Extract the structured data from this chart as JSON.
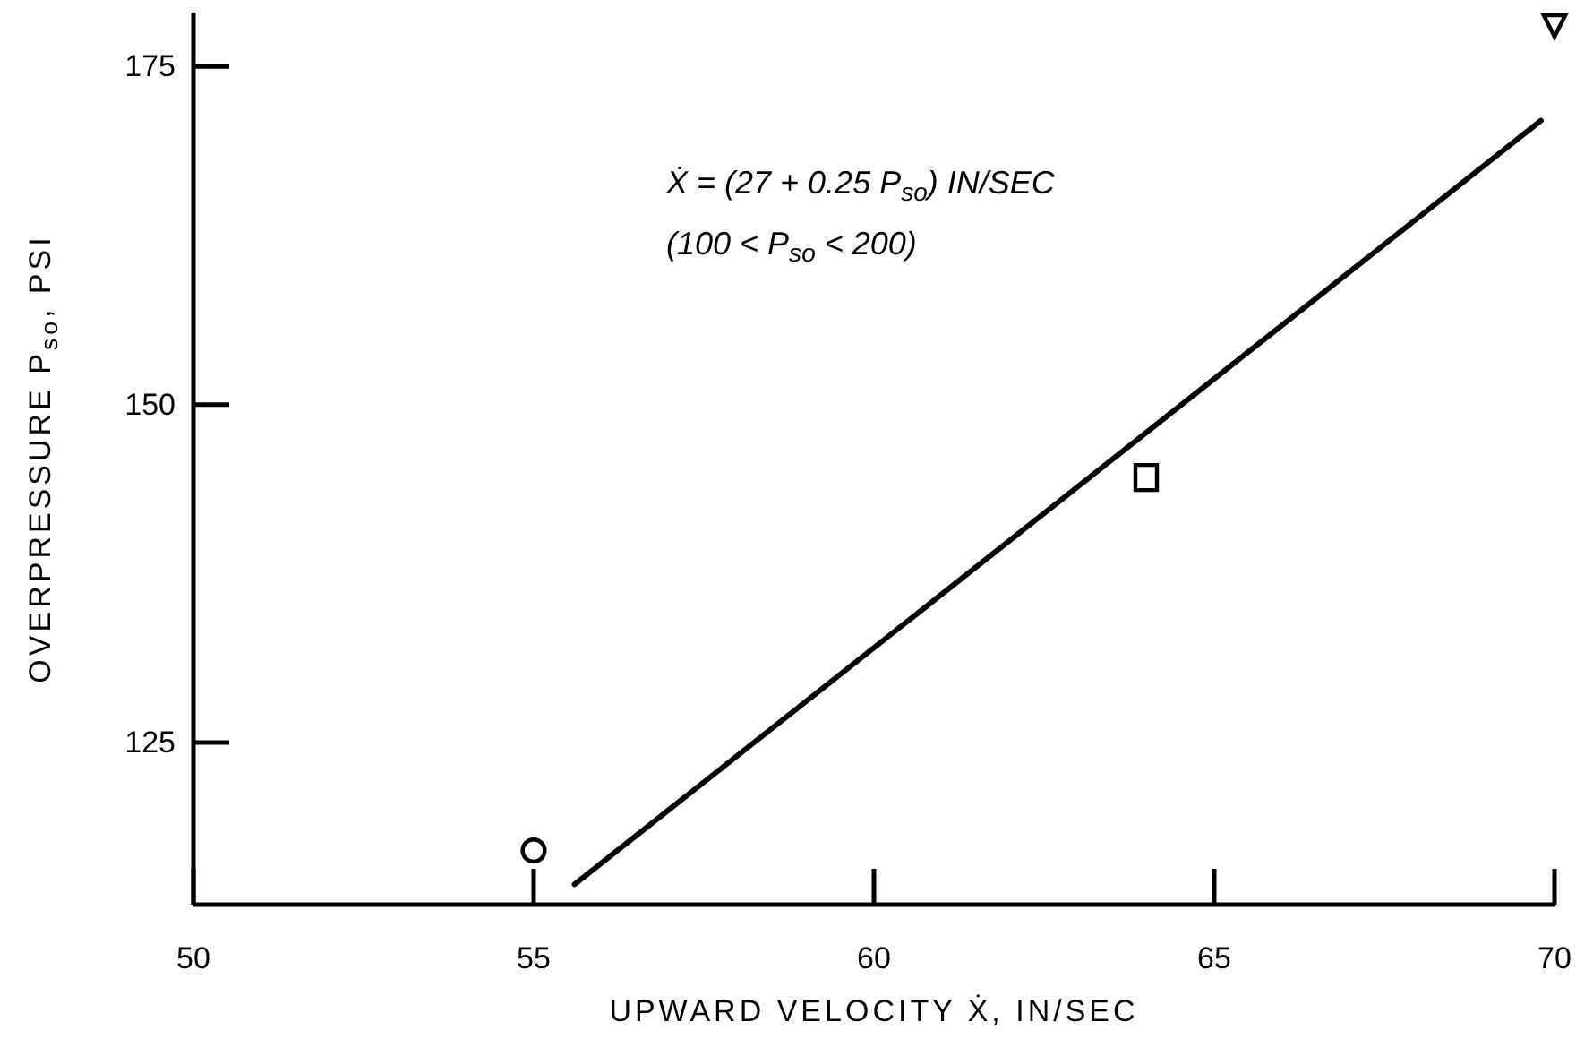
{
  "chart_data": {
    "type": "scatter",
    "xlabel": "UPWARD VELOCITY Ẋ, IN/SEC",
    "ylabel": "OVERPRESSURE P$_{so}$, PSI",
    "annotations": [
      "Ẋ = (27 + 0.25 P$_{so}$) IN/SEC",
      "(100 < P$_{so}$ < 200)"
    ],
    "xlim": [
      50,
      70
    ],
    "xticks": [
      50,
      55,
      60,
      65,
      70
    ],
    "ylim": [
      113,
      179
    ],
    "yticks": [
      125,
      150,
      175
    ],
    "series": [
      {
        "type": "line",
        "color": "#000000",
        "x": [
          55.6,
          69.8
        ],
        "values": [
          114.5,
          171
        ]
      },
      {
        "marker": "circle",
        "color": "#000000",
        "x": [
          55
        ],
        "values": [
          117
        ]
      },
      {
        "marker": "square",
        "color": "#000000",
        "x": [
          64
        ],
        "values": [
          144.6
        ]
      },
      {
        "marker": "triangle",
        "color": "#000000",
        "x": [
          70
        ],
        "values": [
          178
        ]
      }
    ]
  }
}
